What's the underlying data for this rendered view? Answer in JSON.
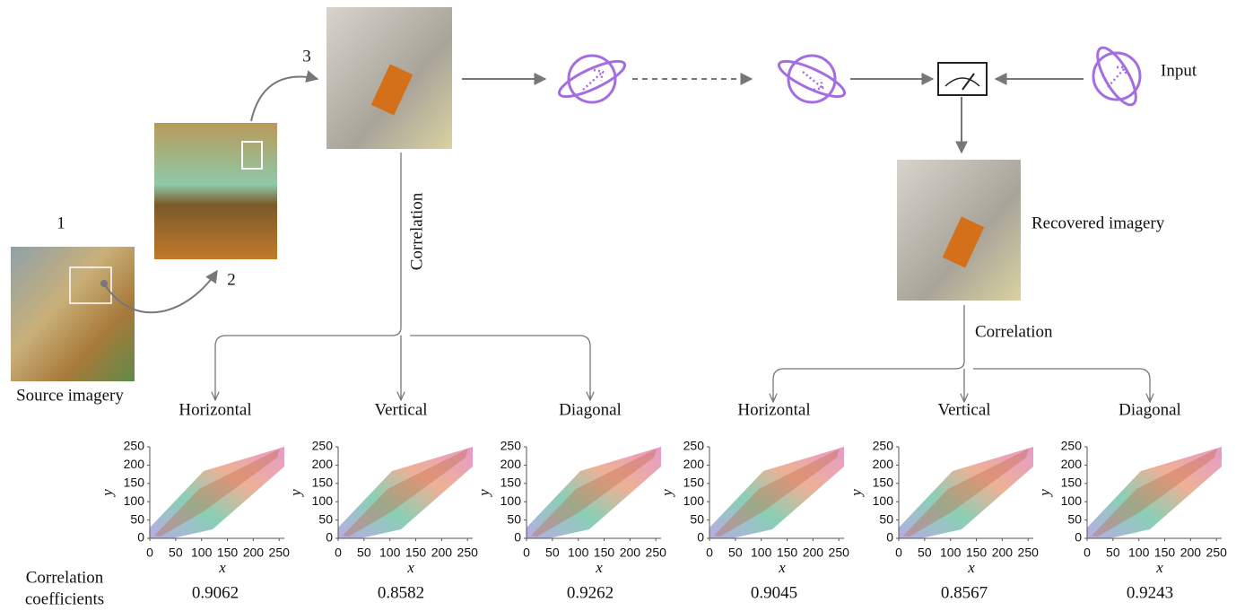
{
  "labels": {
    "step1": "1",
    "step2": "2",
    "step3": "3",
    "source": "Source imagery",
    "recovered": "Recovered imagery",
    "input": "Input",
    "correlation_left": "Correlation",
    "correlation_right": "Correlation",
    "coefficients_label": [
      "Correlation",
      "coefficients"
    ]
  },
  "axes": {
    "xlabel": "x",
    "ylabel": "y",
    "xlim": [
      0,
      260
    ],
    "ylim": [
      0,
      250
    ],
    "xticks": [
      0,
      50,
      100,
      150,
      200,
      250
    ],
    "yticks": [
      0,
      50,
      100,
      150,
      200,
      250
    ]
  },
  "plots": [
    {
      "title": "Horizontal",
      "coefficient": 0.9062
    },
    {
      "title": "Vertical",
      "coefficient": 0.8582
    },
    {
      "title": "Diagonal",
      "coefficient": 0.9262
    },
    {
      "title": "Horizontal",
      "coefficient": 0.9045
    },
    {
      "title": "Vertical",
      "coefficient": 0.8567
    },
    {
      "title": "Diagonal",
      "coefficient": 0.9243
    }
  ]
}
